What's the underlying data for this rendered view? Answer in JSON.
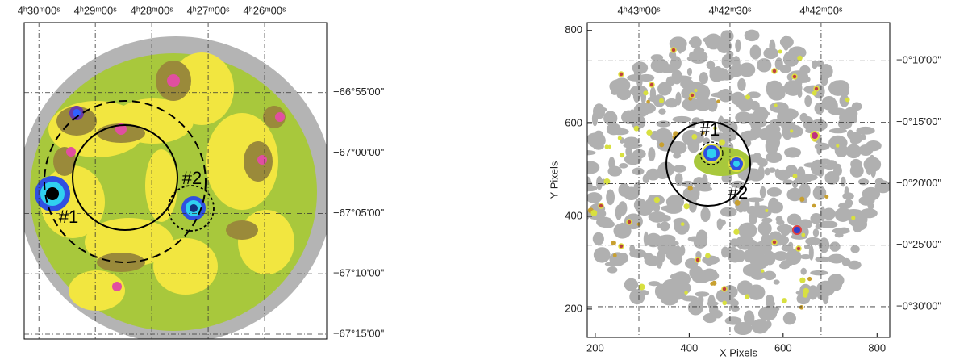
{
  "chart_data": [
    {
      "type": "image",
      "x2lim": [
        270.26,
        264.9
      ],
      "x2ticks": [
        {
          "value": 270,
          "label": "4ʰ30ᵐ00ˢ"
        },
        {
          "value": 269,
          "label": "4ʰ29ᵐ00ˢ"
        },
        {
          "value": 268,
          "label": "4ʰ28ᵐ00ˢ"
        },
        {
          "value": 267,
          "label": "4ʰ27ᵐ00ˢ"
        },
        {
          "value": 266,
          "label": "4ʰ26ᵐ00ˢ"
        }
      ],
      "y2lim": [
        -4035.4,
        -4009.2
      ],
      "y2ticks": [
        {
          "value": -4015,
          "label": "−66°55'00\""
        },
        {
          "value": -4020,
          "label": "−67°00'00\""
        },
        {
          "value": -4025,
          "label": "−67°05'00\""
        },
        {
          "value": -4030,
          "label": "−67°10'00\""
        },
        {
          "value": -4035,
          "label": "−67°15'00\""
        }
      ],
      "grid": true,
      "annotations": [
        "#1",
        "#2"
      ]
    },
    {
      "type": "image",
      "xlabel": "X Pixels",
      "ylabel": "Y Pixels",
      "xlim": [
        183,
        827
      ],
      "xticks": [
        200,
        400,
        600,
        800
      ],
      "ylim": [
        139,
        817
      ],
      "yticks": [
        200,
        400,
        600,
        800
      ],
      "x2lim": [
        16997,
        16897.4
      ],
      "x2ticks": [
        {
          "value": 16980,
          "label": "4ʰ43ᵐ00ˢ"
        },
        {
          "value": 16950,
          "label": "4ʰ42ᵐ30ˢ"
        },
        {
          "value": 16920,
          "label": "4ʰ42ᵐ00ˢ"
        }
      ],
      "y2lim": [
        -32.5,
        -6.9
      ],
      "y2ticks": [
        {
          "value": -10,
          "label": "−0°10'00\""
        },
        {
          "value": -15,
          "label": "−0°15'00\""
        },
        {
          "value": -20,
          "label": "−0°20'00\""
        },
        {
          "value": -25,
          "label": "−0°25'00\""
        },
        {
          "value": -30,
          "label": "−0°30'00\""
        }
      ],
      "grid": true,
      "annotations": [
        "#1",
        "#2"
      ]
    }
  ]
}
